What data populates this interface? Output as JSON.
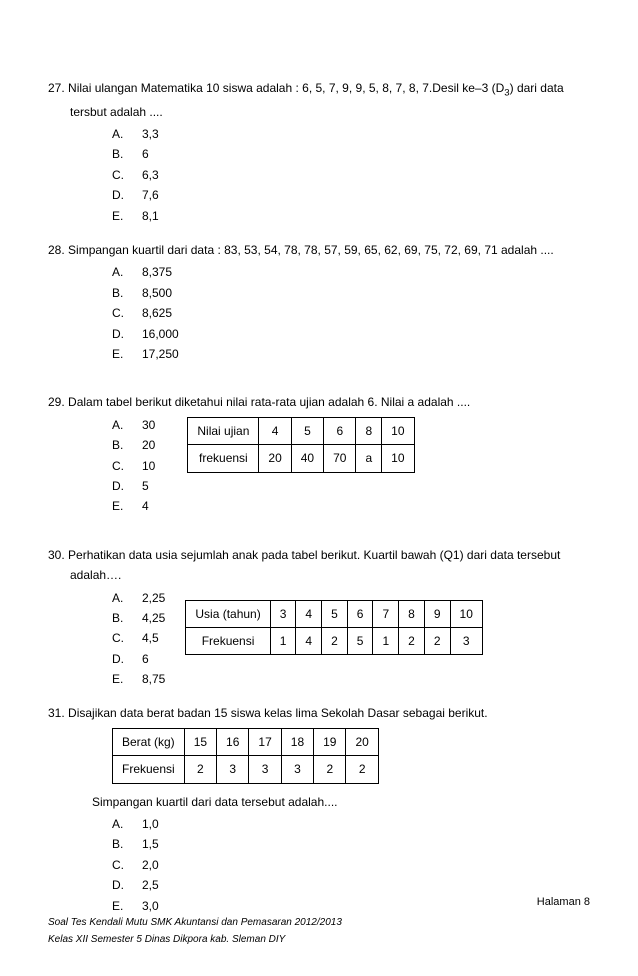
{
  "q27": {
    "num": "27.",
    "text": "Nilai ulangan Matematika 10 siswa adalah : 6, 5, 7, 9, 9, 5, 8, 7, 8, 7.Desil ke–3 (D",
    "sub": "3",
    "text2": ") dari data tersbut adalah ....",
    "opts": {
      "A": "3,3",
      "B": "6",
      "C": "6,3",
      "D": "7,6",
      "E": "8,1"
    }
  },
  "q28": {
    "num": "28.",
    "text": "Simpangan kuartil dari data : 83, 53, 54, 78, 78, 57, 59, 65, 62, 69, 75, 72, 69, 71  adalah ....",
    "opts": {
      "A": "8,375",
      "B": "8,500",
      "C": "8,625",
      "D": "16,000",
      "E": "17,250"
    }
  },
  "q29": {
    "num": "29.",
    "text": "Dalam tabel berikut diketahui nilai rata-rata ujian adalah 6. Nilai a adalah ....",
    "opts": {
      "A": "30",
      "B": "20",
      "C": "10",
      "D": "5",
      "E": "4"
    },
    "table": {
      "headers": [
        "Nilai ujian",
        "4",
        "5",
        "6",
        "8",
        "10"
      ],
      "row": [
        "frekuensi",
        "20",
        "40",
        "70",
        "a",
        "10"
      ]
    }
  },
  "q30": {
    "num": "30.",
    "text": "Perhatikan data usia sejumlah anak pada tabel berikut. Kuartil bawah (Q1) dari data tersebut adalah….",
    "opts": {
      "A": "2,25",
      "B": "4,25",
      "C": "4,5",
      "D": "6",
      "E": "8,75"
    },
    "table": {
      "headers": [
        "Usia (tahun)",
        "3",
        "4",
        "5",
        "6",
        "7",
        "8",
        "9",
        "10"
      ],
      "row": [
        "Frekuensi",
        "1",
        "4",
        "2",
        "5",
        "1",
        "2",
        "2",
        "3"
      ]
    }
  },
  "q31": {
    "num": "31.",
    "text": "Disajikan data berat badan 15 siswa kelas lima Sekolah Dasar sebagai berikut.",
    "table": {
      "headers": [
        "Berat (kg)",
        "15",
        "16",
        "17",
        "18",
        "19",
        "20"
      ],
      "row": [
        "Frekuensi",
        "2",
        "3",
        "3",
        "3",
        "2",
        "2"
      ]
    },
    "sub": "Simpangan kuartil dari data tersebut adalah....",
    "opts": {
      "A": "1,0",
      "B": "1,5",
      "C": "2,0",
      "D": "2,5",
      "E": "3,0"
    }
  },
  "footer": {
    "page": "Halaman   8",
    "line1": "Soal  Tes Kendali  Mutu  SMK  Akuntansi dan Pemasaran 2012/2013",
    "line2": "Kelas XII Semester 5 Dinas Dikpora kab. Sleman DIY"
  }
}
